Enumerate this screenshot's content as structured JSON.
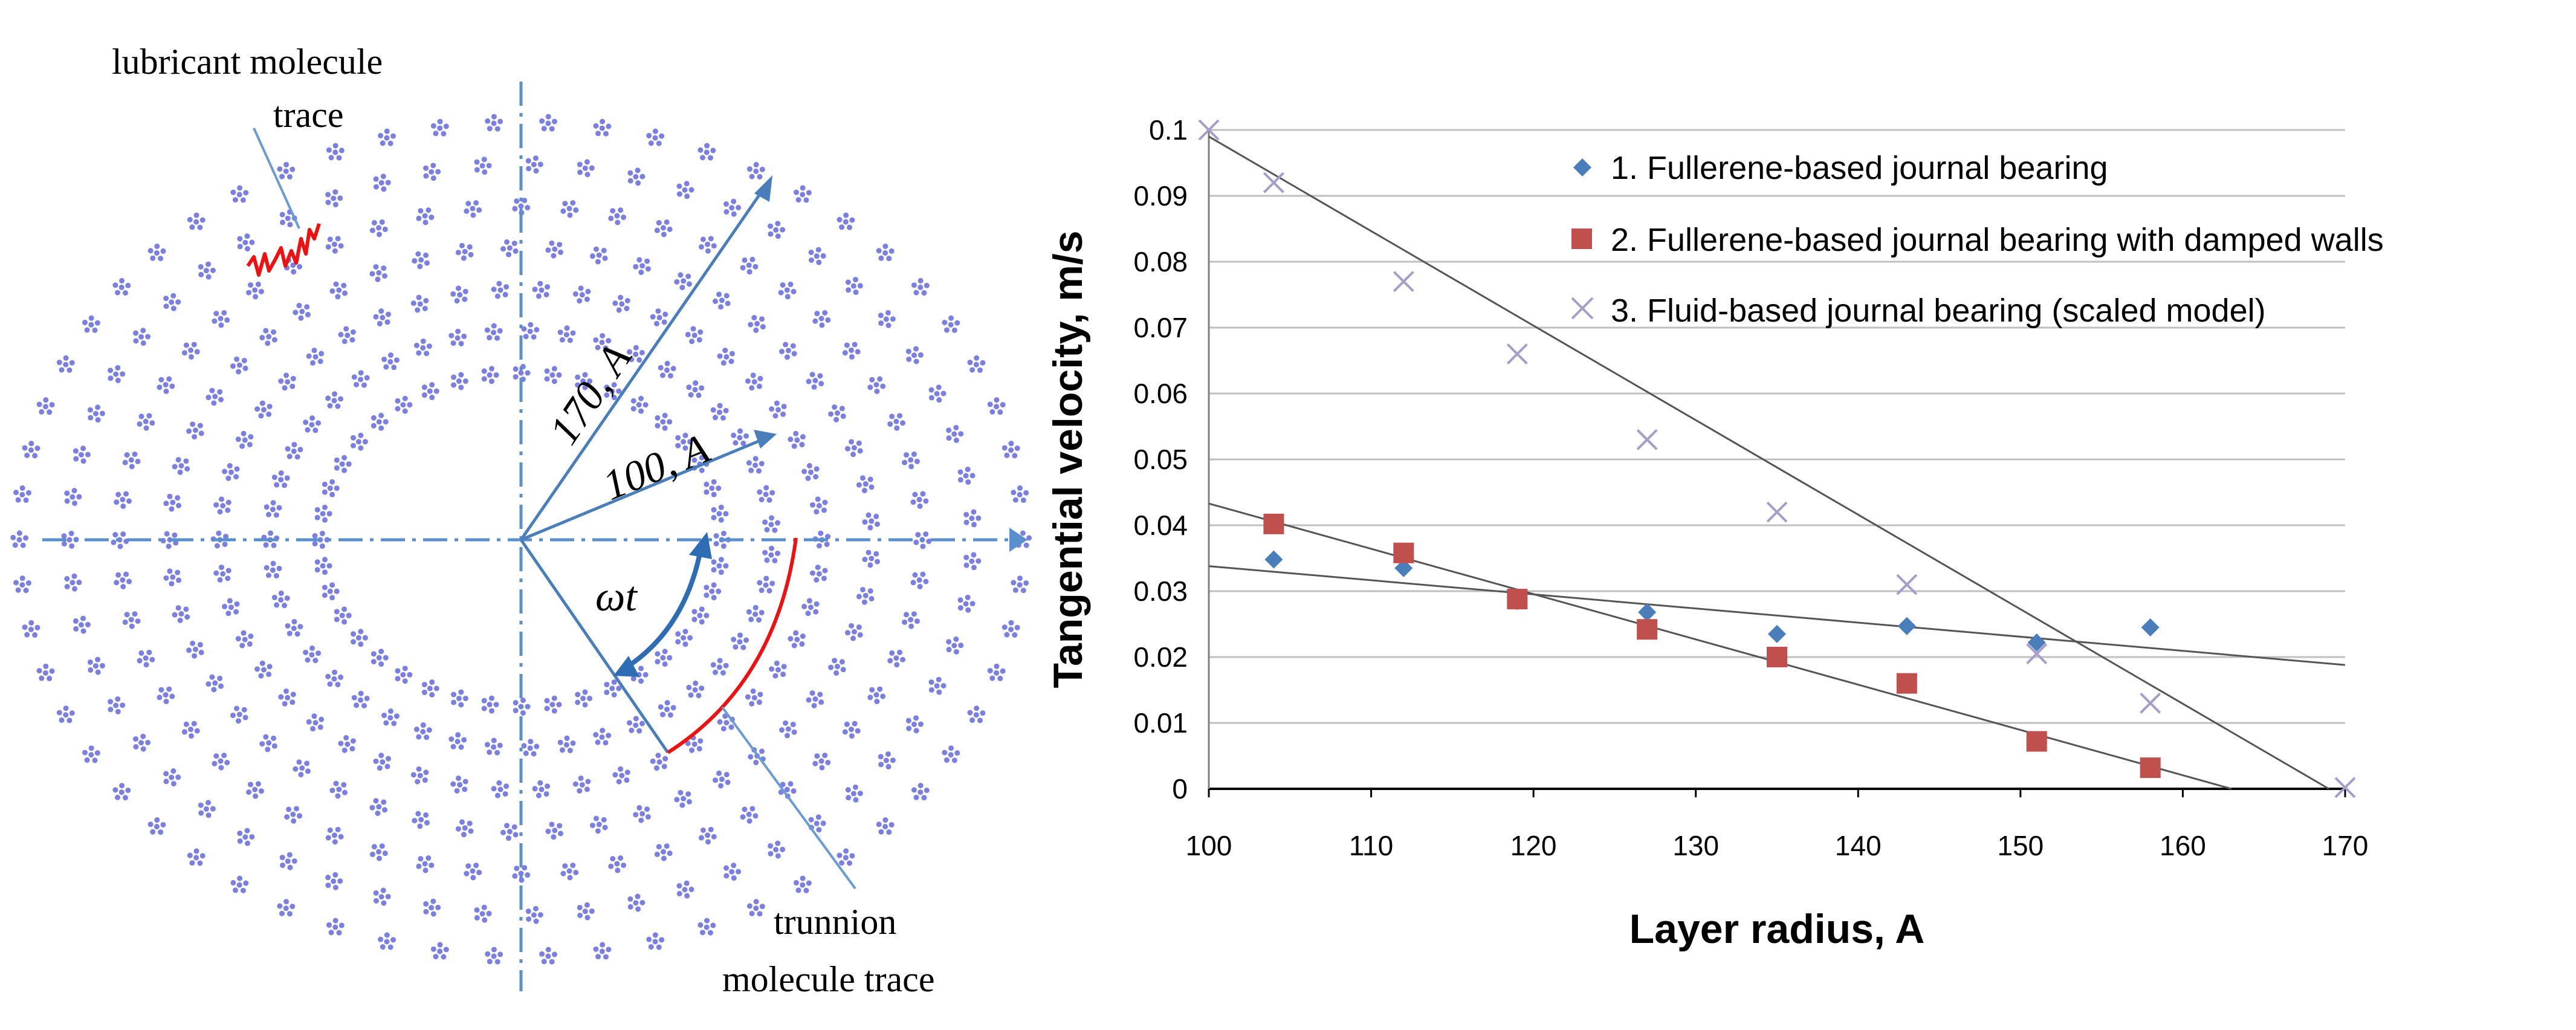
{
  "diagram": {
    "labels": {
      "lubricant": [
        "lubricant molecule",
        "trace"
      ],
      "trunnion": [
        "trunnion",
        "molecule trace"
      ],
      "radius_outer": "170, A",
      "radius_inner": "100, A",
      "angle": "ωt"
    },
    "colors": {
      "particles": "#7b7fe0",
      "axes": "#5a8fcb",
      "trace": "#ee1111",
      "callout": "#6a9bd4"
    }
  },
  "chart_data": {
    "type": "scatter",
    "title": "",
    "xlabel": "Layer radius, A",
    "ylabel": "Tangential velocity, m/s",
    "xlim": [
      100,
      170
    ],
    "ylim": [
      0,
      0.1
    ],
    "x_ticks": [
      "100",
      "110",
      "120",
      "130",
      "140",
      "150",
      "160",
      "170"
    ],
    "y_ticks": [
      "0",
      "0.01",
      "0.02",
      "0.03",
      "0.04",
      "0.05",
      "0.06",
      "0.07",
      "0.08",
      "0.09",
      "0.1"
    ],
    "grid": "horizontal",
    "legend_position": "top-right",
    "series": [
      {
        "name": "1. Fullerene-based journal bearing",
        "marker": "diamond",
        "color": "#4a7ebb",
        "x": [
          104,
          112,
          119,
          127,
          135,
          143,
          151,
          158
        ],
        "y": [
          0.0348,
          0.0335,
          0.0285,
          0.0268,
          0.0235,
          0.0247,
          0.0222,
          0.0245
        ],
        "trendline": {
          "x": [
            100,
            170
          ],
          "y": [
            0.0338,
            0.0188
          ]
        }
      },
      {
        "name": "2. Fullerene-based journal bearing with damped walls",
        "marker": "square",
        "color": "#c0504d",
        "x": [
          104,
          112,
          119,
          127,
          135,
          143,
          151,
          158
        ],
        "y": [
          0.0402,
          0.0358,
          0.0288,
          0.0242,
          0.02,
          0.016,
          0.0072,
          0.0032
        ],
        "trendline": {
          "x": [
            100,
            163
          ],
          "y": [
            0.0433,
            0.0
          ]
        }
      },
      {
        "name": "3. Fluid-based journal bearing (scaled model)",
        "marker": "x",
        "color": "#a89cc8",
        "x": [
          100,
          104,
          112,
          119,
          127,
          135,
          143,
          151,
          158,
          170
        ],
        "y": [
          0.1,
          0.092,
          0.077,
          0.066,
          0.053,
          0.042,
          0.031,
          0.0205,
          0.013,
          0.0002
        ],
        "trendline": {
          "x": [
            100,
            169
          ],
          "y": [
            0.099,
            0.0
          ]
        }
      }
    ]
  }
}
